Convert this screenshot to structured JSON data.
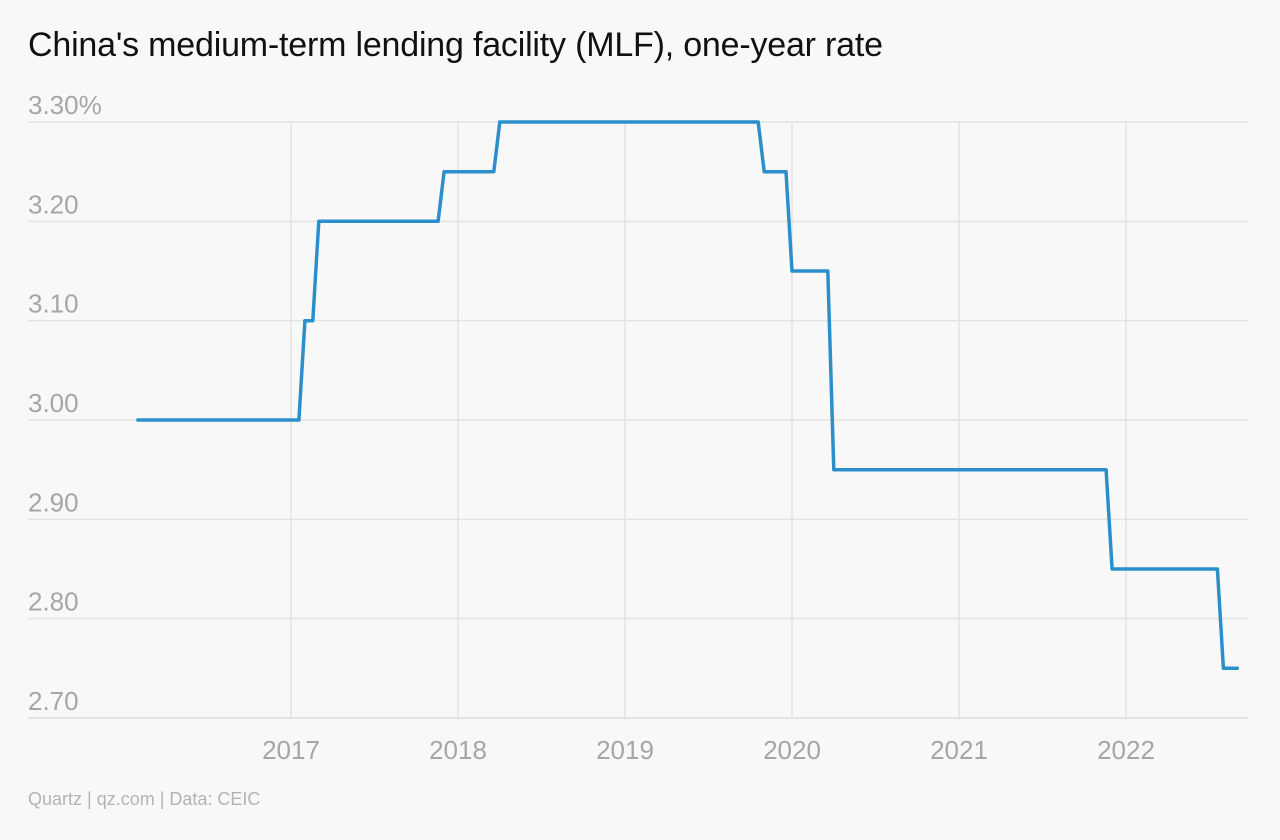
{
  "title": "China's medium-term lending facility (MLF), one-year rate",
  "source": "Quartz | qz.com | Data: CEIC",
  "colors": {
    "line": "#2b8fcc",
    "grid": "#e2e2e2",
    "tick_text": "#a6a6a6",
    "background": "#f8f8f8"
  },
  "chart_data": {
    "type": "line",
    "title": "China's medium-term lending facility (MLF), one-year rate",
    "xlabel": "",
    "ylabel": "",
    "ylim": [
      2.7,
      3.3
    ],
    "xlim": [
      "2016-02",
      "2022-09"
    ],
    "y_ticks": [
      3.3,
      3.2,
      3.1,
      3.0,
      2.9,
      2.8,
      2.7
    ],
    "y_tick_labels": [
      "3.30%",
      "3.20",
      "3.10",
      "3.00",
      "2.90",
      "2.80",
      "2.70"
    ],
    "x_ticks": [
      2017,
      2018,
      2019,
      2020,
      2021,
      2022
    ],
    "x_tick_labels": [
      "2017",
      "2018",
      "2019",
      "2020",
      "2021",
      "2022"
    ],
    "grid": true,
    "legend": "none",
    "series": [
      {
        "step": "post",
        "points": [
          {
            "x": "2016-02",
            "y": 3.0
          },
          {
            "x": "2017-01",
            "y": 3.0
          },
          {
            "x": "2017-02",
            "y": 3.1
          },
          {
            "x": "2017-03",
            "y": 3.2
          },
          {
            "x": "2017-12",
            "y": 3.25
          },
          {
            "x": "2018-04",
            "y": 3.3
          },
          {
            "x": "2019-11",
            "y": 3.25
          },
          {
            "x": "2020-01",
            "y": 3.15
          },
          {
            "x": "2020-04",
            "y": 2.95
          },
          {
            "x": "2021-12",
            "y": 2.85
          },
          {
            "x": "2022-08",
            "y": 2.75
          }
        ]
      }
    ]
  }
}
